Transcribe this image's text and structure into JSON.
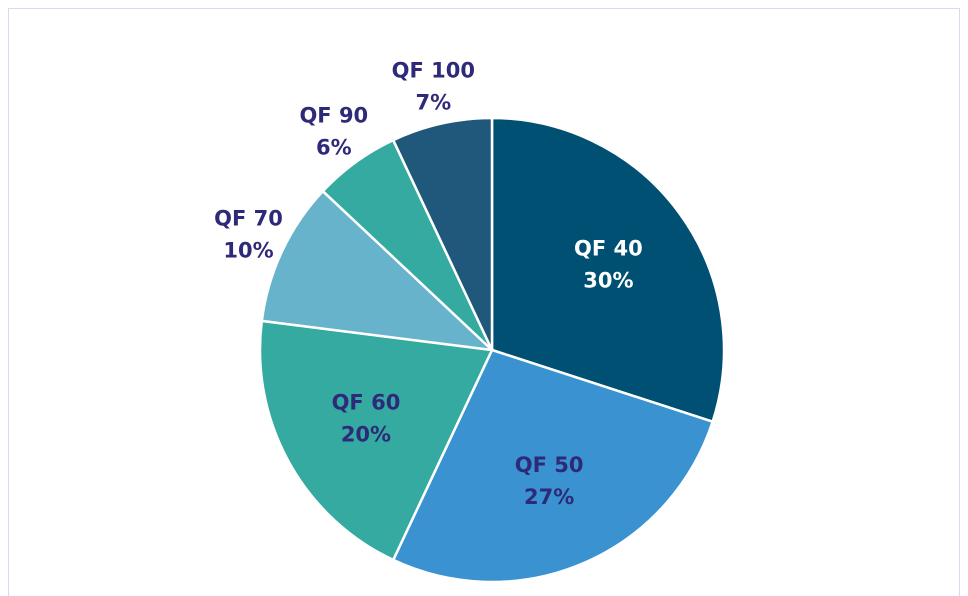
{
  "chart_data": {
    "type": "pie",
    "categories": [
      "QF 40",
      "QF 50",
      "QF 60",
      "QF 70",
      "QF 90",
      "QF 100"
    ],
    "values": [
      30,
      27,
      20,
      10,
      6,
      7
    ],
    "value_labels": [
      "30%",
      "27%",
      "20%",
      "10%",
      "6%",
      "7%"
    ],
    "colors": [
      "#005073",
      "#3a93d0",
      "#35aaa0",
      "#67b3cb",
      "#35aaa0",
      "#1f587a"
    ],
    "label_colors": [
      "#ffffff",
      "#2e2a7a",
      "#2e2a7a",
      "#2e2a7a",
      "#2e2a7a",
      "#2e2a7a"
    ]
  }
}
